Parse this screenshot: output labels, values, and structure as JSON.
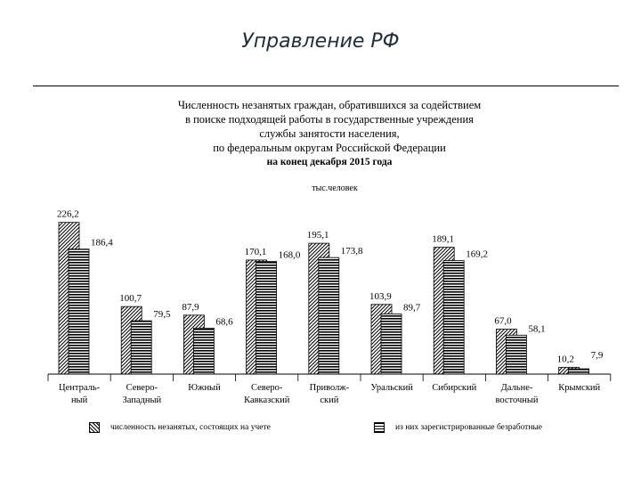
{
  "slide": {
    "title": "Управление РФ"
  },
  "chart_data": {
    "type": "bar",
    "title_lines": [
      "Численность незанятых граждан, обратившихся за содействием",
      "в поиске подходящей работы в государственные учреждения",
      "службы занятости населения,",
      "по федеральным округам Российской Федерации"
    ],
    "subtitle": "на конец декабря 2015 года",
    "unit": "тыс.человек",
    "categories": [
      [
        "Централь-",
        "ный"
      ],
      [
        "Северо-",
        "Западный"
      ],
      [
        "Южный"
      ],
      [
        "Северо-",
        "Кавказский"
      ],
      [
        "Приволж-",
        "ский"
      ],
      [
        "Уральский"
      ],
      [
        "Сибирский"
      ],
      [
        "Дальне-",
        "восточный"
      ],
      [
        "Крымский"
      ]
    ],
    "series": [
      {
        "name": "численность незанятых, состоящих на учете",
        "pattern": "diagonal",
        "values": [
          226.2,
          100.7,
          87.9,
          170.1,
          195.1,
          103.9,
          189.1,
          67.0,
          10.2
        ],
        "labels": [
          "226,2",
          "100,7",
          "87,9",
          "170,1",
          "195,1",
          "103,9",
          "189,1",
          "67,0",
          "10,2"
        ]
      },
      {
        "name": "из них зарегистрированные безработные",
        "pattern": "horizontal",
        "values": [
          186.4,
          79.5,
          68.6,
          168.0,
          173.8,
          89.7,
          169.2,
          58.1,
          7.9
        ],
        "labels": [
          "186,4",
          "79,5",
          "68,6",
          "168,0",
          "173,8",
          "89,7",
          "169,2",
          "58,1",
          "7,9"
        ]
      }
    ],
    "ylim": [
      0,
      240
    ],
    "grid": false,
    "legend_position": "bottom"
  }
}
